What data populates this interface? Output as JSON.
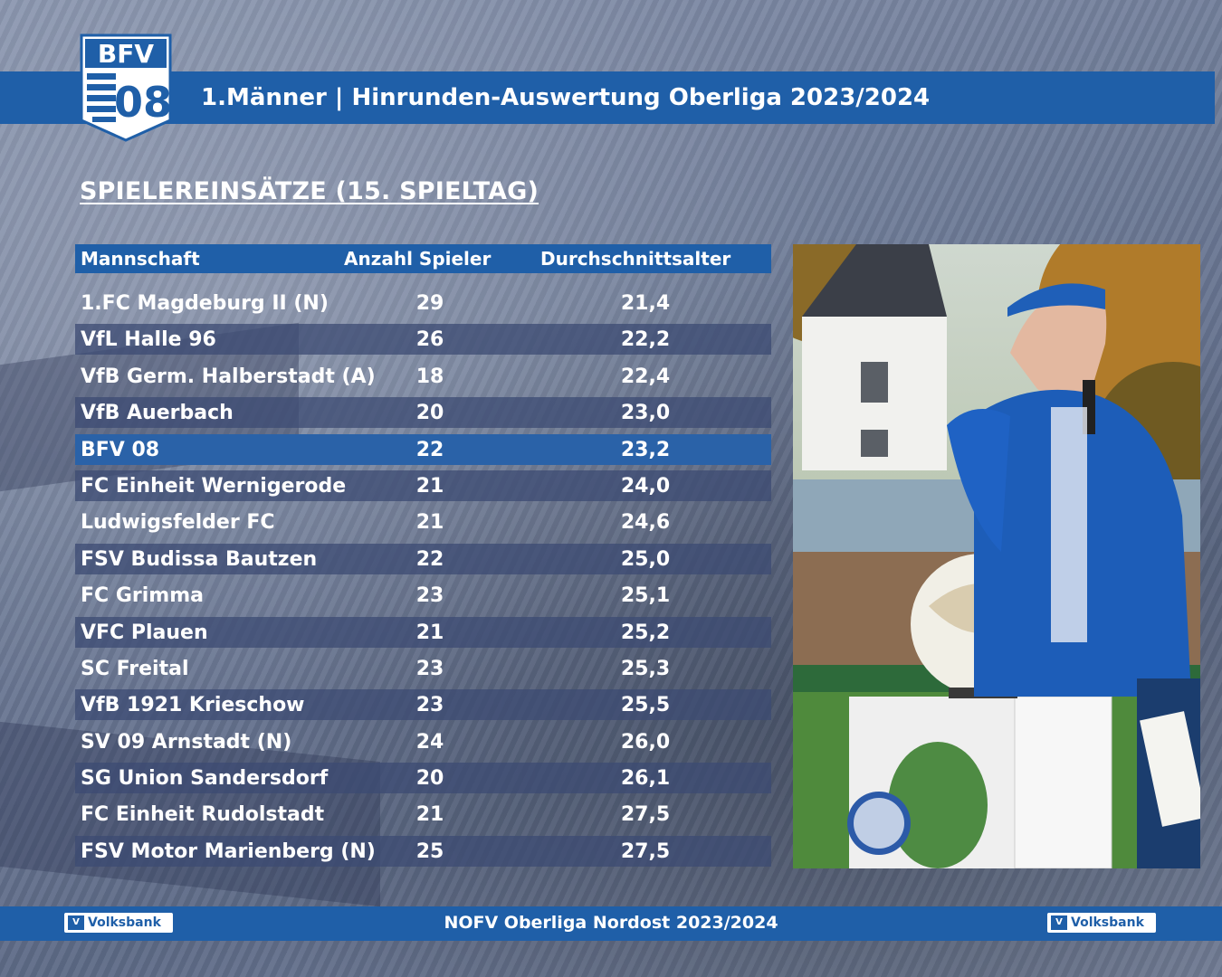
{
  "header": {
    "title": "1.Männer | Hinrunden-Auswertung Oberliga 2023/2024",
    "logo_top": "BFV",
    "logo_bottom": "08"
  },
  "section_title": "SPIELEREINSÄTZE (15. SPIELTAG)",
  "table": {
    "columns": [
      "Mannschaft",
      "Anzahl Spieler",
      "Durchschnittsalter"
    ],
    "rows": [
      {
        "team": "1.FC Magdeburg II (N)",
        "players": "29",
        "avg_age": "21,4"
      },
      {
        "team": "VfL Halle 96",
        "players": "26",
        "avg_age": "22,2"
      },
      {
        "team": "VfB Germ. Halberstadt (A)",
        "players": "18",
        "avg_age": "22,4"
      },
      {
        "team": "VfB Auerbach",
        "players": "20",
        "avg_age": "23,0"
      },
      {
        "team": "BFV 08",
        "players": "22",
        "avg_age": "23,2"
      },
      {
        "team": "FC Einheit Wernigerode",
        "players": "21",
        "avg_age": "24,0"
      },
      {
        "team": "Ludwigsfelder FC",
        "players": "21",
        "avg_age": "24,6"
      },
      {
        "team": "FSV Budissa Bautzen",
        "players": "22",
        "avg_age": "25,0"
      },
      {
        "team": "FC Grimma",
        "players": "23",
        "avg_age": "25,1"
      },
      {
        "team": "VFC Plauen",
        "players": "21",
        "avg_age": "25,2"
      },
      {
        "team": "SC Freital",
        "players": "23",
        "avg_age": "25,3"
      },
      {
        "team": "VfB 1921 Krieschow",
        "players": "23",
        "avg_age": "25,5"
      },
      {
        "team": "SV 09 Arnstadt (N)",
        "players": "24",
        "avg_age": "26,0"
      },
      {
        "team": "SG Union Sandersdorf",
        "players": "20",
        "avg_age": "26,1"
      },
      {
        "team": "FC Einheit Rudolstadt",
        "players": "21",
        "avg_age": "27,5"
      },
      {
        "team": "FSV Motor Marienberg (N)",
        "players": "25",
        "avg_age": "27,5"
      }
    ],
    "highlighted_team": "BFV 08"
  },
  "footer": {
    "text": "NOFV Oberliga Nordost 2023/2024",
    "sponsor_left": "Volksbank",
    "sponsor_right": "Volksbank"
  },
  "colors": {
    "brand_blue": "#1f5fa8",
    "highlight_row": "#2a62a8",
    "text": "#ffffff"
  },
  "icons": {
    "logo": "bfv-08-shield-logo",
    "sponsor": "volksbank-logo"
  }
}
